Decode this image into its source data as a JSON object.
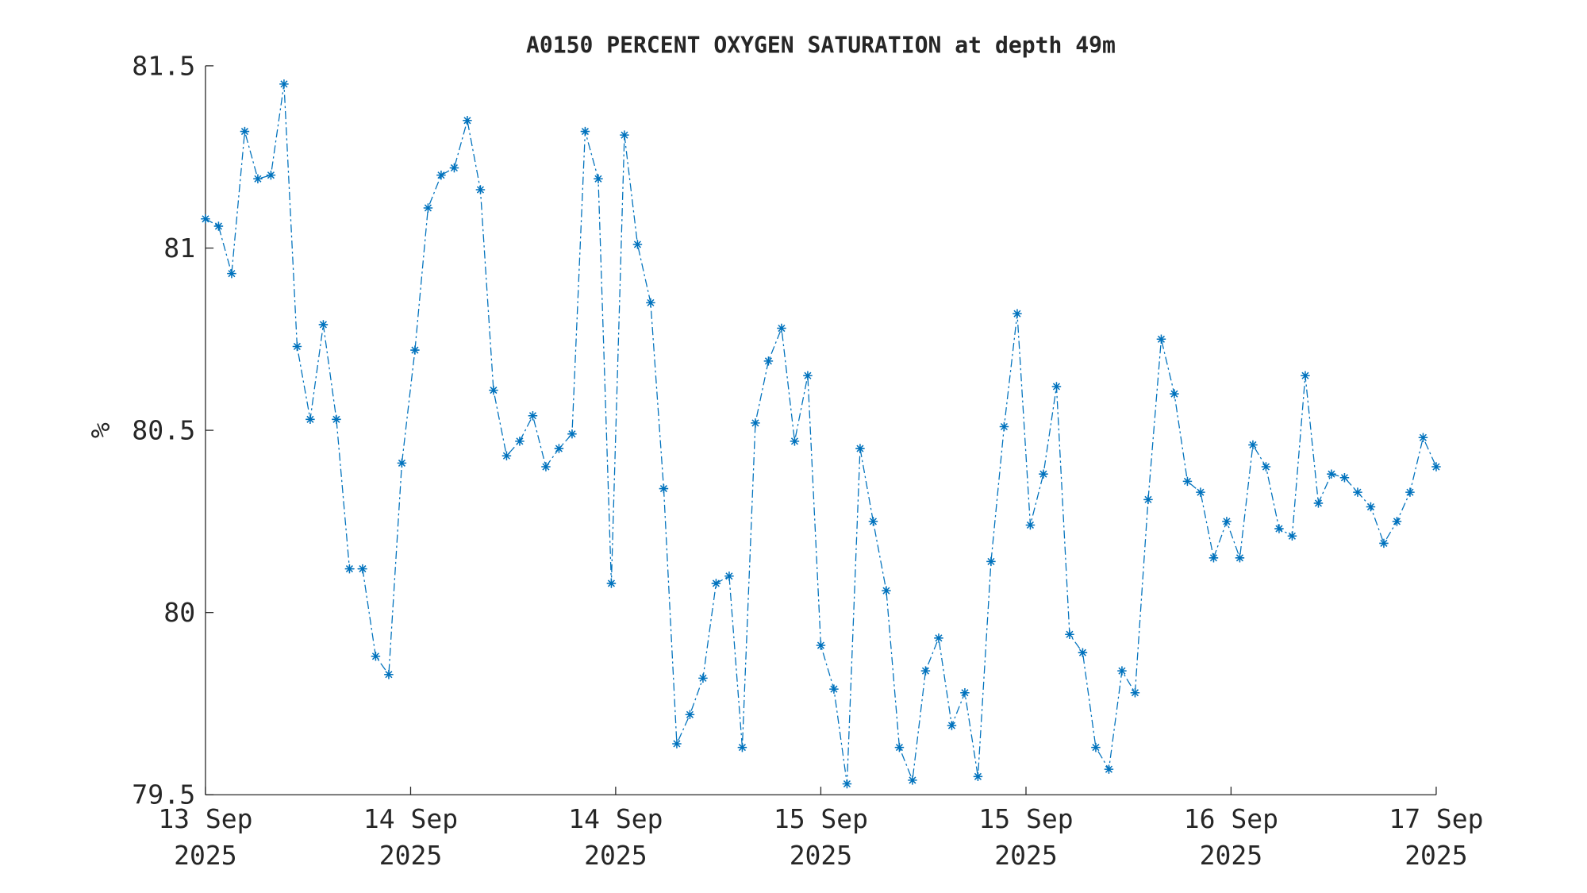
{
  "chart_data": {
    "type": "line",
    "title": "A0150 PERCENT OXYGEN SATURATION at depth 49m",
    "ylabel": "%",
    "x": [
      0,
      1,
      2,
      3,
      4,
      5,
      6,
      7,
      8,
      9,
      10,
      11,
      12,
      13,
      14,
      15,
      16,
      17,
      18,
      19,
      20,
      21,
      22,
      23,
      24,
      25,
      26,
      27,
      28,
      29,
      30,
      31,
      32,
      33,
      34,
      35,
      36,
      37,
      38,
      39,
      40,
      41,
      42,
      43,
      44,
      45,
      46,
      47,
      48,
      49,
      50,
      51,
      52,
      53,
      54,
      55,
      56,
      57,
      58,
      59,
      60,
      61,
      62,
      63,
      64,
      65,
      66,
      67,
      68,
      69,
      70,
      71,
      72,
      73,
      74,
      75,
      76,
      77,
      78,
      79,
      80,
      81,
      82,
      83,
      84,
      85,
      86,
      87,
      88,
      89,
      90,
      91,
      92,
      93,
      94
    ],
    "series": [
      {
        "name": "A0150",
        "color": "#0072bd",
        "values": [
          81.08,
          81.06,
          80.93,
          81.32,
          81.19,
          81.2,
          81.45,
          80.73,
          80.53,
          80.79,
          80.53,
          80.12,
          80.12,
          79.88,
          79.83,
          80.41,
          80.72,
          81.11,
          81.2,
          81.22,
          81.35,
          81.16,
          80.61,
          80.43,
          80.47,
          80.54,
          80.4,
          80.45,
          80.49,
          81.32,
          81.19,
          80.08,
          81.31,
          81.01,
          80.85,
          80.34,
          79.64,
          79.72,
          79.82,
          80.08,
          80.1,
          79.63,
          80.52,
          80.69,
          80.78,
          80.47,
          80.65,
          79.91,
          79.79,
          79.53,
          80.45,
          80.25,
          80.06,
          79.63,
          79.54,
          79.84,
          79.93,
          79.69,
          79.78,
          79.55,
          80.14,
          80.51,
          80.82,
          80.24,
          80.38,
          80.62,
          79.94,
          79.89,
          79.63,
          79.57,
          79.84,
          79.78,
          80.31,
          80.75,
          80.6,
          80.36,
          80.33,
          80.15,
          80.25,
          80.15,
          80.46,
          80.4,
          80.23,
          80.21,
          80.65,
          80.3,
          80.38,
          80.37,
          80.33,
          80.29,
          80.19,
          80.25,
          80.33,
          80.48,
          80.4
        ]
      }
    ],
    "xlim": [
      0,
      94
    ],
    "xticks": [
      {
        "value": 0,
        "label": "13 Sep\n2025"
      },
      {
        "value": 15.67,
        "label": "14 Sep\n2025"
      },
      {
        "value": 31.33,
        "label": "14 Sep\n2025"
      },
      {
        "value": 47,
        "label": "15 Sep\n2025"
      },
      {
        "value": 62.67,
        "label": "15 Sep\n2025"
      },
      {
        "value": 78.33,
        "label": "16 Sep\n2025"
      },
      {
        "value": 94,
        "label": "17 Sep\n2025"
      }
    ],
    "ylim": [
      79.5,
      81.5
    ],
    "yticks": [
      79.5,
      80,
      80.5,
      81,
      81.5
    ],
    "grid": false
  }
}
